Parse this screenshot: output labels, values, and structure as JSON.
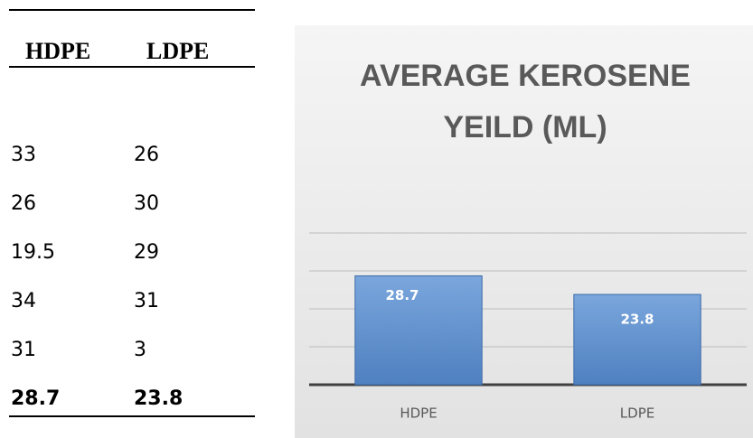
{
  "table": {
    "headers": [
      "HDPE",
      "LDPE"
    ],
    "rows": [
      [
        33,
        26
      ],
      [
        26,
        30
      ],
      [
        19.5,
        29
      ],
      [
        34,
        31
      ],
      [
        31,
        3
      ]
    ],
    "footer": [
      28.7,
      23.8
    ]
  },
  "chart_data": {
    "type": "bar",
    "title": "AVERAGE KEROSENE YEILD (ML)",
    "categories": [
      "HDPE",
      "LDPE"
    ],
    "values": [
      28.7,
      23.8
    ],
    "color": "#5b8fd0",
    "ylim": [
      0,
      40
    ],
    "yticks": [
      0,
      10,
      20,
      30,
      40
    ],
    "grid": true
  }
}
